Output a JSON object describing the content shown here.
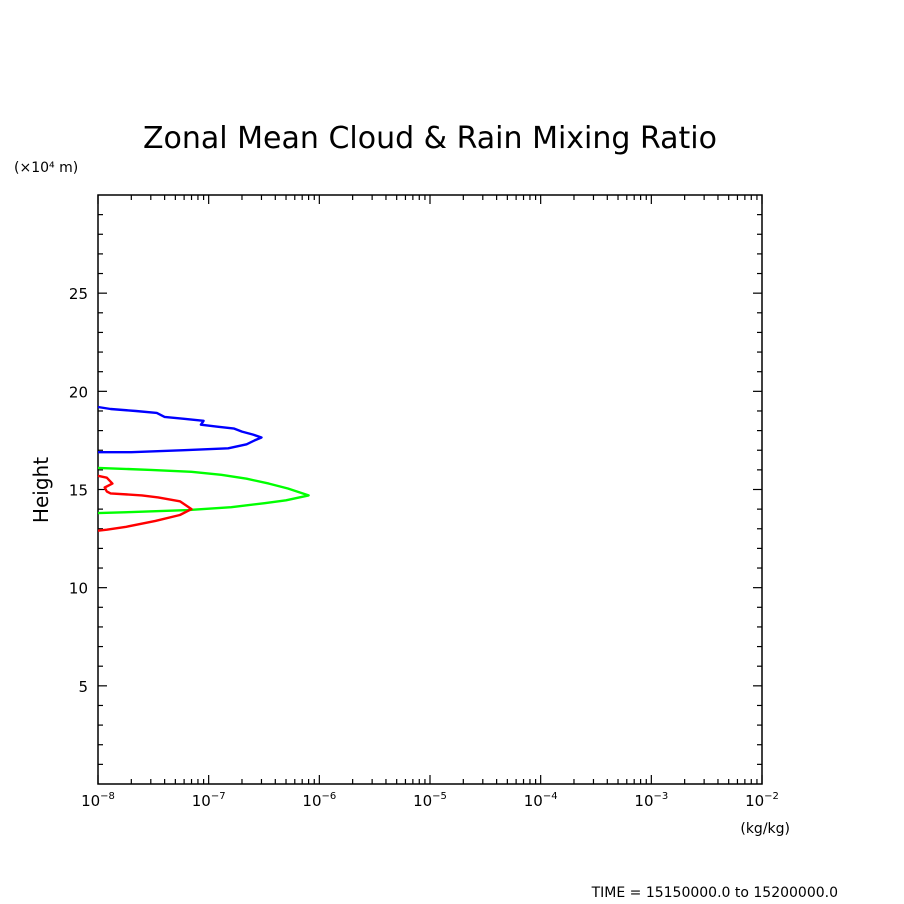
{
  "chart_data": {
    "type": "line",
    "title": "Zonal Mean Cloud & Rain Mixing Ratio",
    "ylabel": "Height",
    "y_unit": "(×10⁴ m)",
    "x_unit": "(kg/kg)",
    "xscale": "log",
    "xlim": [
      1e-08,
      0.01
    ],
    "ylim": [
      0,
      30
    ],
    "x_ticks": [
      1e-08,
      1e-07,
      1e-06,
      1e-05,
      0.0001,
      0.001,
      0.01
    ],
    "x_tick_labels": [
      {
        "base": "10",
        "exp": "−8"
      },
      {
        "base": "10",
        "exp": "−7"
      },
      {
        "base": "10",
        "exp": "−6"
      },
      {
        "base": "10",
        "exp": "−5"
      },
      {
        "base": "10",
        "exp": "−4"
      },
      {
        "base": "10",
        "exp": "−3"
      },
      {
        "base": "10",
        "exp": "−2"
      }
    ],
    "y_ticks": [
      5,
      10,
      15,
      20,
      25
    ],
    "y_tick_labels": [
      "5",
      "10",
      "15",
      "20",
      "25"
    ],
    "series": [
      {
        "color": "#0000ff",
        "points": [
          [
            1e-08,
            19.2
          ],
          [
            1.3e-08,
            19.1
          ],
          [
            2.2e-08,
            19.0
          ],
          [
            3.4e-08,
            18.9
          ],
          [
            4e-08,
            18.7
          ],
          [
            6e-08,
            18.6
          ],
          [
            9e-08,
            18.5
          ],
          [
            8.5e-08,
            18.3
          ],
          [
            1.2e-07,
            18.2
          ],
          [
            1.7e-07,
            18.1
          ],
          [
            2e-07,
            17.95
          ],
          [
            2.5e-07,
            17.8
          ],
          [
            3e-07,
            17.65
          ],
          [
            2.6e-07,
            17.5
          ],
          [
            2.2e-07,
            17.3
          ],
          [
            1.5e-07,
            17.1
          ],
          [
            6e-08,
            17.0
          ],
          [
            2e-08,
            16.9
          ],
          [
            1e-08,
            16.9
          ]
        ]
      },
      {
        "color": "#00ff00",
        "points": [
          [
            1e-08,
            16.1
          ],
          [
            3e-08,
            16.0
          ],
          [
            7e-08,
            15.9
          ],
          [
            1.3e-07,
            15.75
          ],
          [
            2.2e-07,
            15.55
          ],
          [
            3.5e-07,
            15.3
          ],
          [
            5.2e-07,
            15.05
          ],
          [
            8e-07,
            14.7
          ],
          [
            5e-07,
            14.45
          ],
          [
            3.2e-07,
            14.3
          ],
          [
            1.6e-07,
            14.1
          ],
          [
            6.5e-08,
            13.95
          ],
          [
            2e-08,
            13.85
          ],
          [
            1e-08,
            13.8
          ]
        ]
      },
      {
        "color": "#ff0000",
        "points": [
          [
            1e-08,
            15.7
          ],
          [
            1.2e-08,
            15.6
          ],
          [
            1.35e-08,
            15.3
          ],
          [
            1.15e-08,
            15.1
          ],
          [
            1.2e-08,
            14.9
          ],
          [
            1.3e-08,
            14.8
          ],
          [
            2.5e-08,
            14.7
          ],
          [
            3.5e-08,
            14.6
          ],
          [
            5.5e-08,
            14.4
          ],
          [
            7e-08,
            14.0
          ],
          [
            5.5e-08,
            13.7
          ],
          [
            3.3e-08,
            13.4
          ],
          [
            1.8e-08,
            13.1
          ],
          [
            1.2e-08,
            12.95
          ],
          [
            1e-08,
            12.9
          ]
        ]
      }
    ],
    "grid": false,
    "legend": "none"
  },
  "footer": {
    "time_text": "TIME = 15150000.0 to 15200000.0"
  }
}
